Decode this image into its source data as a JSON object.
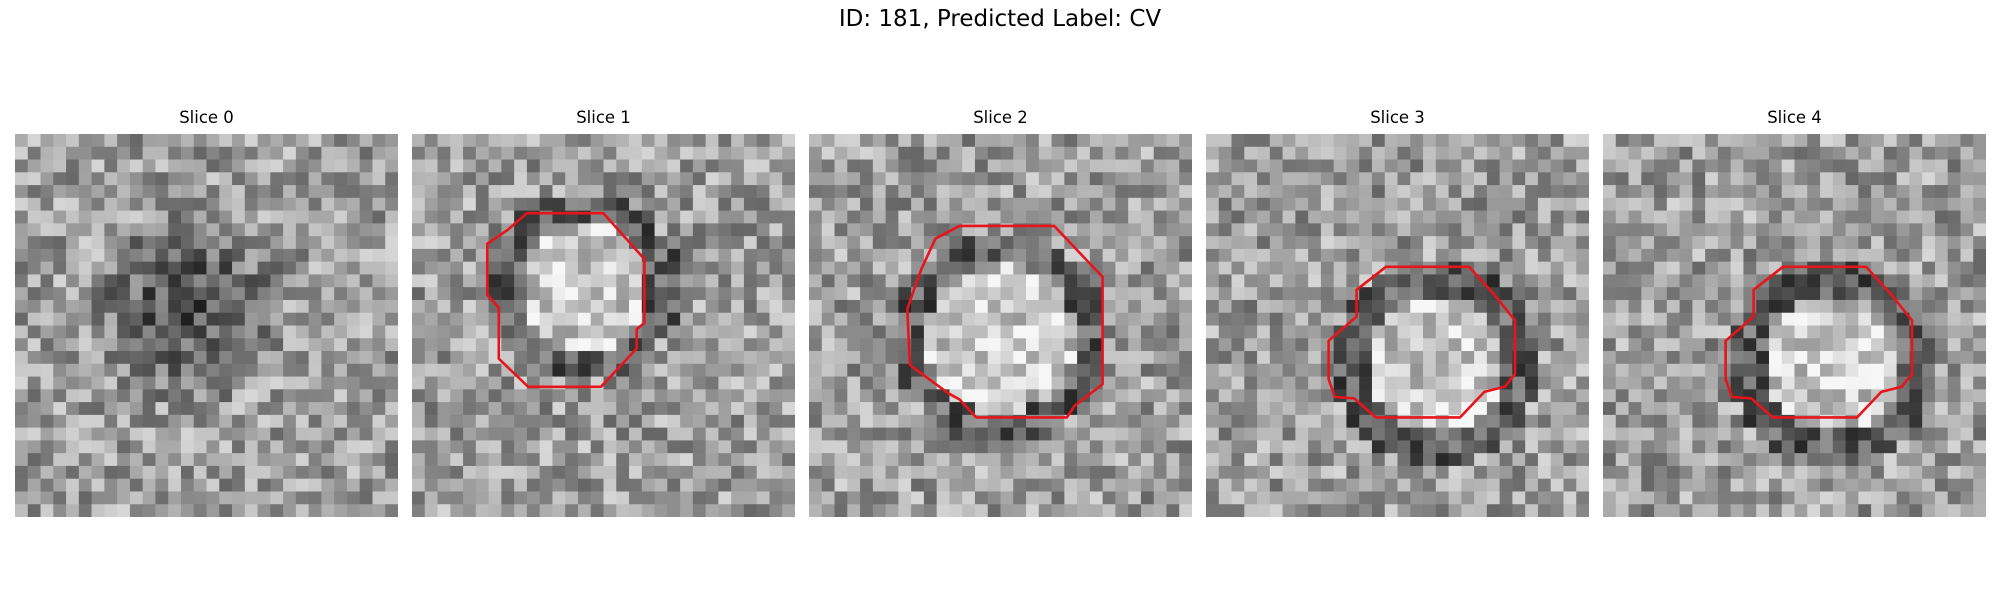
{
  "title": "ID: 181, Predicted Label: CV",
  "panels": [
    {
      "label": "Slice 0",
      "has_contour": false
    },
    {
      "label": "Slice 1",
      "has_contour": true
    },
    {
      "label": "Slice 2",
      "has_contour": true
    },
    {
      "label": "Slice 3",
      "has_contour": true
    },
    {
      "label": "Slice 4",
      "has_contour": true
    }
  ],
  "contour_color": "#e8141c"
}
